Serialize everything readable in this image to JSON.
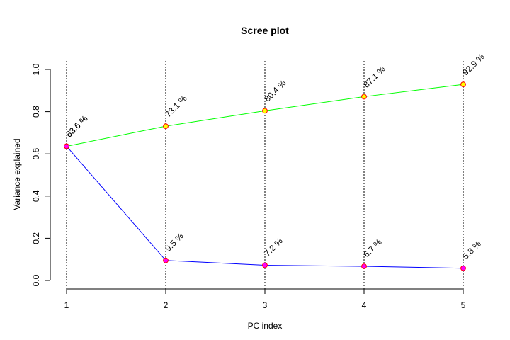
{
  "chart_data": {
    "type": "line",
    "title": "Scree plot",
    "xlabel": "PC index",
    "ylabel": "Variance explained",
    "x": [
      1,
      2,
      3,
      4,
      5
    ],
    "xlim": [
      1,
      5
    ],
    "ylim": [
      0,
      1
    ],
    "yticks": [
      0.0,
      0.2,
      0.4,
      0.6,
      0.8,
      1.0
    ],
    "ytick_labels": [
      "0.0",
      "0.2",
      "0.4",
      "0.6",
      "0.8",
      "1.0"
    ],
    "xtick_labels": [
      "1",
      "2",
      "3",
      "4",
      "5"
    ],
    "grid": "vertical dotted lines at each PC index",
    "legend": "none",
    "series": [
      {
        "key": "cumulative",
        "color": "#00ff00",
        "marker_fill": "#ffff00",
        "marker_stroke": "#ff0000",
        "values": [
          0.636,
          0.731,
          0.804,
          0.871,
          0.929
        ],
        "labels": [
          "63.6 %",
          "73.1 %",
          "80.4 %",
          "87.1 %",
          "92.9 %"
        ]
      },
      {
        "key": "individual",
        "color": "#0000ff",
        "marker_fill": "#ff00ff",
        "marker_stroke": "#ff0000",
        "values": [
          0.636,
          0.095,
          0.072,
          0.067,
          0.058
        ],
        "labels": [
          "63.6 %",
          "9.5 %",
          "7.2 %",
          "6.7 %",
          "5.8 %"
        ]
      }
    ]
  }
}
